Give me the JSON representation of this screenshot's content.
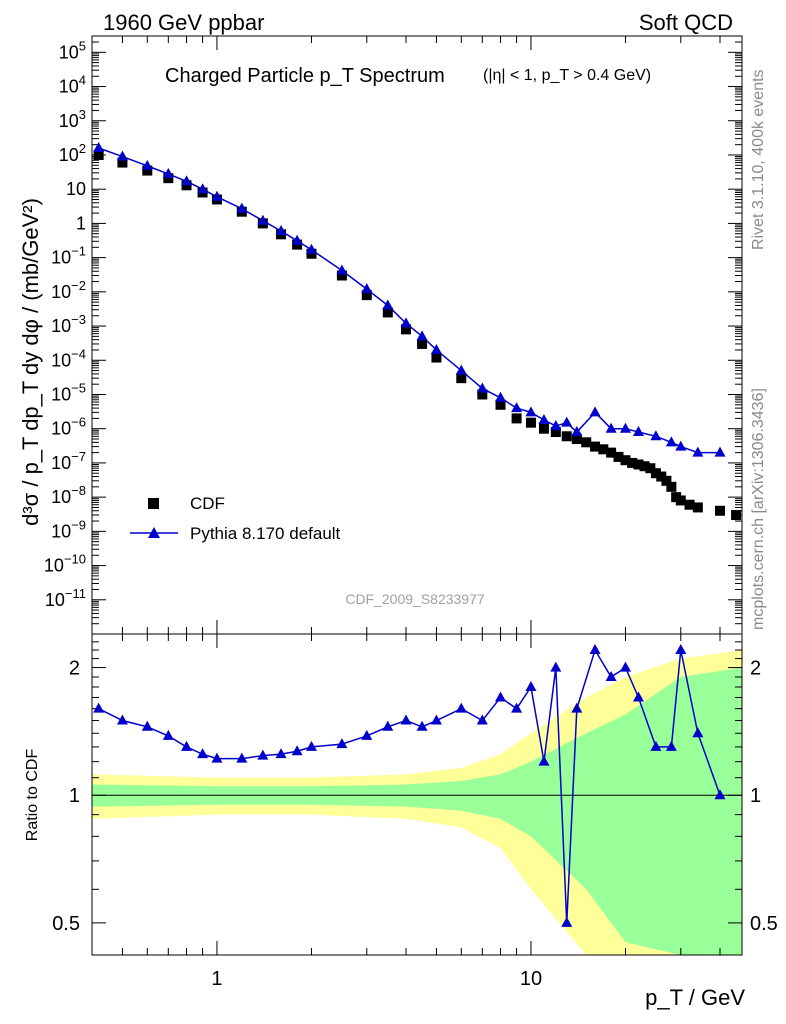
{
  "header": {
    "left": "1960 GeV ppbar",
    "right": "Soft QCD"
  },
  "side_labels": {
    "rivet": "Rivet 3.1.10,  400k events",
    "mcplots": "mcplots.cern.ch [arXiv:1306.3436]"
  },
  "colors": {
    "data": "#000000",
    "mc": "#0000cc",
    "band_inner": "#99ff99",
    "band_outer": "#ffff99"
  },
  "chart_data": [
    {
      "type": "scatter",
      "panel": "main",
      "title": "Charged Particle p_T Spectrum",
      "subtitle": "(|η| < 1, p_T > 0.4 GeV)",
      "ylabel": "d³σ / p_T dp_T dy dφ / (mb/GeV²)",
      "xlabel": "p_T / GeV",
      "xscale": "log",
      "yscale": "log",
      "xlim": [
        0.4,
        47
      ],
      "ylim": [
        1e-12,
        300000.0
      ],
      "x_ticks": [
        "1",
        "10"
      ],
      "y_ticks": [
        "10^-11",
        "10^-10",
        "10^-9",
        "10^-8",
        "10^-7",
        "10^-6",
        "10^-5",
        "10^-4",
        "10^-3",
        "10^-2",
        "10^-1",
        "1",
        "10",
        "10^2",
        "10^3",
        "10^4",
        "10^5"
      ],
      "watermark": "CDF_2009_S8233977",
      "legend_position": "bottom-left",
      "series": [
        {
          "name": "CDF",
          "marker": "square",
          "x": [
            0.42,
            0.5,
            0.6,
            0.7,
            0.8,
            0.9,
            1.0,
            1.2,
            1.4,
            1.6,
            1.8,
            2.0,
            2.5,
            3.0,
            3.5,
            4.0,
            4.5,
            5.0,
            6.0,
            7.0,
            8.0,
            9.0,
            10,
            11,
            12,
            13,
            14,
            15,
            16,
            17,
            18,
            19,
            20,
            21,
            22,
            23,
            24,
            25,
            26,
            27,
            28,
            29,
            30,
            32,
            34,
            40,
            45
          ],
          "y": [
            100,
            60,
            35,
            21,
            13,
            8,
            5,
            2.2,
            1,
            0.48,
            0.24,
            0.13,
            0.03,
            0.008,
            0.0025,
            0.0008,
            0.0003,
            0.00012,
            3e-05,
            1e-05,
            5e-06,
            2e-06,
            1.5e-06,
            1e-06,
            8e-07,
            6e-07,
            5e-07,
            4e-07,
            3e-07,
            2.5e-07,
            2e-07,
            1.5e-07,
            1.2e-07,
            1e-07,
            9e-08,
            8e-08,
            7e-08,
            5e-08,
            4e-08,
            3e-08,
            2e-08,
            1e-08,
            8e-09,
            6e-09,
            5e-09,
            4e-09,
            3e-09
          ]
        },
        {
          "name": "Pythia 8.170 default",
          "marker": "triangle",
          "x": [
            0.42,
            0.5,
            0.6,
            0.7,
            0.8,
            0.9,
            1.0,
            1.2,
            1.4,
            1.6,
            1.8,
            2.0,
            2.5,
            3.0,
            3.5,
            4.0,
            4.5,
            5.0,
            6.0,
            7.0,
            8.0,
            9.0,
            10,
            11,
            12,
            13,
            14,
            16,
            18,
            20,
            22,
            25,
            28,
            30,
            34,
            40
          ],
          "y": [
            160,
            90,
            48,
            28,
            17,
            10,
            6,
            2.7,
            1.2,
            0.6,
            0.31,
            0.17,
            0.042,
            0.012,
            0.004,
            0.0012,
            0.0005,
            0.0002,
            5e-05,
            1.5e-05,
            8e-06,
            4e-06,
            3e-06,
            1.8e-06,
            1.2e-06,
            1.5e-06,
            8e-07,
            3e-06,
            1e-06,
            1e-06,
            8e-07,
            6e-07,
            4e-07,
            3e-07,
            2e-07,
            2e-07
          ]
        }
      ]
    },
    {
      "type": "line",
      "panel": "ratio",
      "ylabel": "Ratio to CDF",
      "yscale": "log",
      "ylim": [
        0.42,
        2.4
      ],
      "y_ticks": [
        "0.5",
        "1",
        "2"
      ],
      "series": [
        {
          "name": "Pythia 8.170 default / CDF",
          "x": [
            0.42,
            0.5,
            0.6,
            0.7,
            0.8,
            0.9,
            1.0,
            1.2,
            1.4,
            1.6,
            1.8,
            2.0,
            2.5,
            3.0,
            3.5,
            4.0,
            4.5,
            5.0,
            6.0,
            7.0,
            8.0,
            9.0,
            10,
            11,
            12,
            13,
            14,
            16,
            18,
            20,
            22,
            25,
            28,
            30,
            34,
            40
          ],
          "y": [
            1.6,
            1.5,
            1.45,
            1.38,
            1.3,
            1.25,
            1.22,
            1.22,
            1.24,
            1.25,
            1.27,
            1.3,
            1.32,
            1.38,
            1.45,
            1.5,
            1.45,
            1.5,
            1.6,
            1.5,
            1.7,
            1.6,
            1.8,
            1.2,
            2.0,
            0.5,
            1.6,
            2.2,
            1.9,
            2.0,
            1.7,
            1.3,
            1.3,
            2.2,
            1.4,
            1.0
          ]
        }
      ],
      "bands": {
        "x": [
          0.4,
          1,
          2,
          4,
          6,
          8,
          10,
          15,
          20,
          30,
          47
        ],
        "inner_half_width": [
          0.06,
          0.05,
          0.05,
          0.06,
          0.08,
          0.12,
          0.2,
          0.4,
          0.55,
          0.9,
          1.0
        ],
        "outer_half_width": [
          0.12,
          0.1,
          0.1,
          0.12,
          0.16,
          0.25,
          0.4,
          0.7,
          0.9,
          1.1,
          1.2
        ]
      }
    }
  ]
}
